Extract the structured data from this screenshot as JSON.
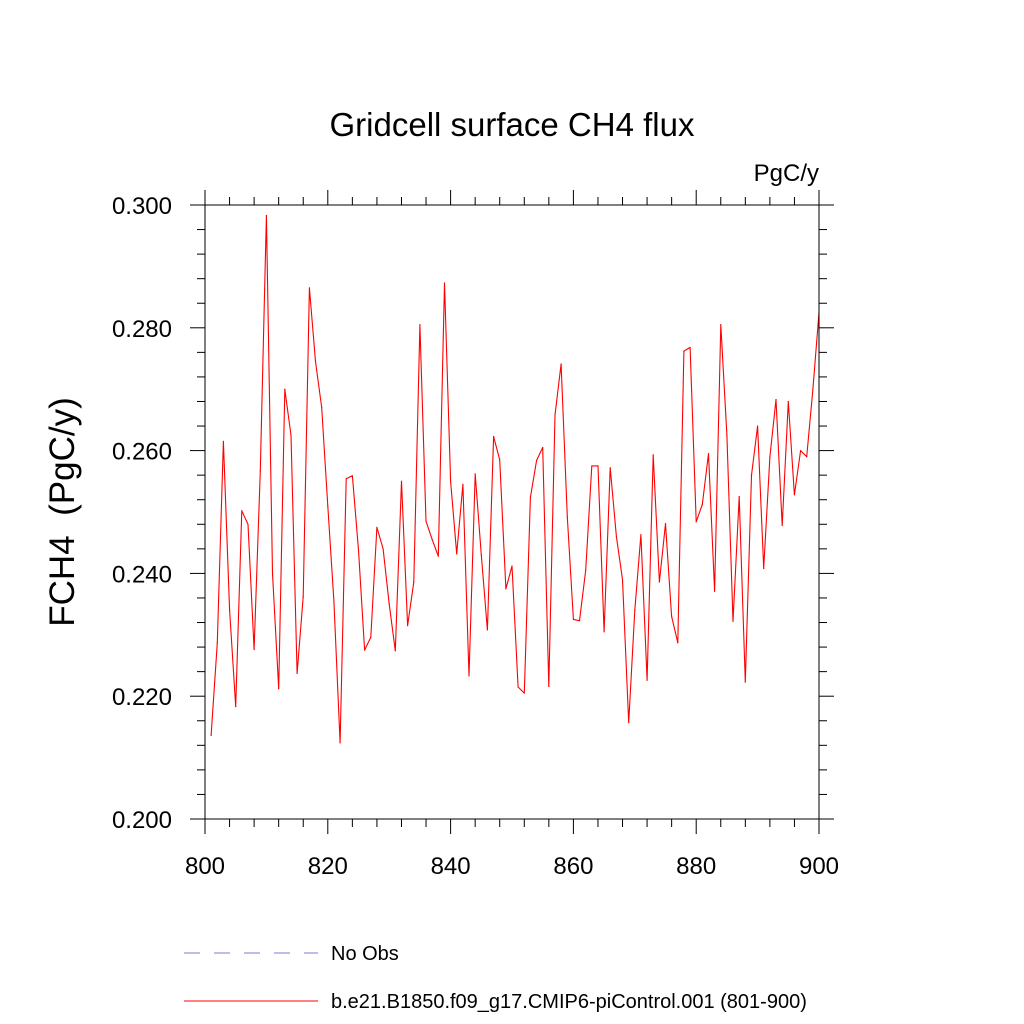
{
  "chart_data": {
    "type": "line",
    "title": "Gridcell surface CH4 flux",
    "units": "PgC/y",
    "ylabel": "FCH4  (PgC/y)",
    "xlabel": "",
    "xlim": [
      800,
      900
    ],
    "ylim": [
      0.2,
      0.3
    ],
    "x_ticks": [
      "800",
      "820",
      "840",
      "860",
      "880",
      "900"
    ],
    "y_ticks": [
      "0.200",
      "0.220",
      "0.240",
      "0.260",
      "0.280",
      "0.300"
    ],
    "grid": false,
    "legend_position": "bottom",
    "series": [
      {
        "name": "b.e21.B1850.f09_g17.CMIP6-piControl.001 (801-900)",
        "color": "#ff0000",
        "style": "solid",
        "x": [
          801,
          802,
          803,
          804,
          805,
          806,
          807,
          808,
          809,
          810,
          811,
          812,
          813,
          814,
          815,
          816,
          817,
          818,
          819,
          820,
          821,
          822,
          823,
          824,
          825,
          826,
          827,
          828,
          829,
          830,
          831,
          832,
          833,
          834,
          835,
          836,
          837,
          838,
          839,
          840,
          841,
          842,
          843,
          844,
          845,
          846,
          847,
          848,
          849,
          850,
          851,
          852,
          853,
          854,
          855,
          856,
          857,
          858,
          859,
          860,
          861,
          862,
          863,
          864,
          865,
          866,
          867,
          868,
          869,
          870,
          871,
          872,
          873,
          874,
          875,
          876,
          877,
          878,
          879,
          880,
          881,
          882,
          883,
          884,
          885,
          886,
          887,
          888,
          889,
          890,
          891,
          892,
          893,
          894,
          895,
          896,
          897,
          898,
          899,
          900
        ],
        "values": [
          0.2136,
          0.2287,
          0.2615,
          0.234,
          0.2183,
          0.2502,
          0.248,
          0.2276,
          0.2567,
          0.2983,
          0.24,
          0.2212,
          0.27,
          0.2625,
          0.2237,
          0.2362,
          0.2865,
          0.2745,
          0.267,
          0.251,
          0.2355,
          0.2124,
          0.2554,
          0.2559,
          0.2438,
          0.2275,
          0.2296,
          0.2475,
          0.244,
          0.235,
          0.2274,
          0.255,
          0.2315,
          0.2386,
          0.2805,
          0.2485,
          0.2455,
          0.2428,
          0.2873,
          0.255,
          0.2432,
          0.2545,
          0.2233,
          0.2562,
          0.243,
          0.2308,
          0.2623,
          0.2585,
          0.2375,
          0.2412,
          0.2215,
          0.2205,
          0.2524,
          0.2584,
          0.2605,
          0.2216,
          0.2658,
          0.2741,
          0.2492,
          0.2325,
          0.2323,
          0.2405,
          0.2575,
          0.2575,
          0.2305,
          0.2572,
          0.246,
          0.239,
          0.2157,
          0.234,
          0.2463,
          0.2226,
          0.2593,
          0.2386,
          0.2481,
          0.233,
          0.2287,
          0.2762,
          0.2768,
          0.2484,
          0.2512,
          0.2595,
          0.2371,
          0.2805,
          0.2625,
          0.2322,
          0.2525,
          0.2223,
          0.256,
          0.264,
          0.2408,
          0.259,
          0.2683,
          0.2478,
          0.268,
          0.2528,
          0.26,
          0.259,
          0.27,
          0.2825
        ]
      }
    ],
    "legend": [
      {
        "label": "No Obs",
        "color": "#7b7bd6",
        "style": "dashed"
      },
      {
        "label": "b.e21.B1850.f09_g17.CMIP6-piControl.001 (801-900)",
        "color": "#ff0000",
        "style": "solid"
      }
    ]
  }
}
